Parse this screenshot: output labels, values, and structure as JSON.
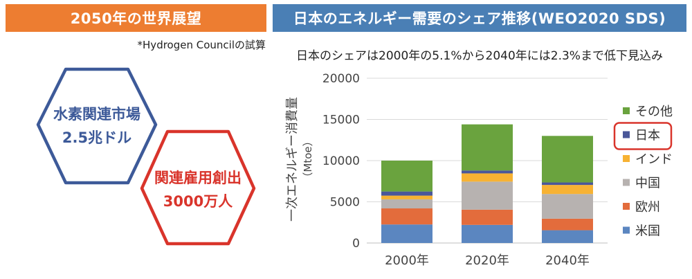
{
  "left_panel": {
    "banner": "2050年の世界展望",
    "note": "*Hydrogen Councilの試算",
    "hex_blue": {
      "line1": "水素関連市場",
      "line2": "2.5兆ドル",
      "color": "#3D5A99"
    },
    "hex_red": {
      "line1": "関連雇用創出",
      "line2": "3000万人",
      "color": "#D9342B"
    }
  },
  "right_panel": {
    "banner": "日本のエネルギー需要のシェア推移(WEO2020 SDS)",
    "subtitle": "日本のシェアは2000年の5.1%から2040年には2.3%まで低下見込み"
  },
  "colors": {
    "left_banner": "#ED7D31",
    "right_banner": "#4A7FB5",
    "highlight": "#D9342B"
  },
  "chart_data": {
    "type": "bar",
    "stacked": true,
    "categories": [
      "2000年",
      "2020年",
      "2040年"
    ],
    "ylabel_main": "一次エネルギー消費量",
    "ylabel_unit": "（Mtoe）",
    "ylim": [
      0,
      20000
    ],
    "yticks": [
      "0",
      "5000",
      "10000",
      "15000",
      "20000"
    ],
    "grid": "horizontal",
    "legend_position": "right",
    "highlighted_series": "日本",
    "series": [
      {
        "name": "米国",
        "color": "#5B86C0",
        "values": [
          2250,
          2200,
          1550
        ]
      },
      {
        "name": "欧州",
        "color": "#E36C3C",
        "values": [
          1950,
          1850,
          1400
        ]
      },
      {
        "name": "中国",
        "color": "#B7B2B0",
        "values": [
          1100,
          3400,
          3000
        ]
      },
      {
        "name": "インド",
        "color": "#F7B233",
        "values": [
          450,
          1000,
          1100
        ]
      },
      {
        "name": "日本",
        "color": "#4A5799",
        "values": [
          500,
          350,
          300
        ]
      },
      {
        "name": "その他",
        "color": "#6AA33E",
        "values": [
          3750,
          5600,
          5650
        ]
      }
    ]
  }
}
